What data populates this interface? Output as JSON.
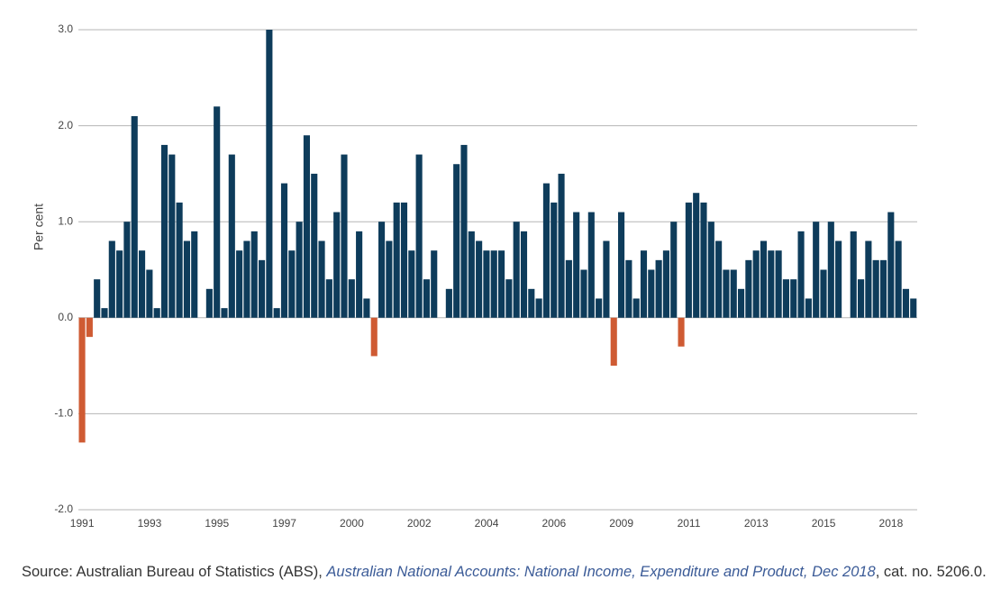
{
  "chart_data": {
    "type": "bar",
    "y_label": "Per cent",
    "categories": [
      "1991",
      null,
      null,
      null,
      null,
      null,
      null,
      null,
      null,
      "1993",
      null,
      null,
      null,
      null,
      null,
      null,
      null,
      null,
      "1995",
      null,
      null,
      null,
      null,
      null,
      null,
      null,
      null,
      "1997",
      null,
      null,
      null,
      null,
      null,
      null,
      null,
      null,
      "2000",
      null,
      null,
      null,
      null,
      null,
      null,
      null,
      null,
      "2002",
      null,
      null,
      null,
      null,
      null,
      null,
      null,
      null,
      "2004",
      null,
      null,
      null,
      null,
      null,
      null,
      null,
      null,
      "2006",
      null,
      null,
      null,
      null,
      null,
      null,
      null,
      null,
      "2009",
      null,
      null,
      null,
      null,
      null,
      null,
      null,
      null,
      "2011",
      null,
      null,
      null,
      null,
      null,
      null,
      null,
      null,
      "2013",
      null,
      null,
      null,
      null,
      null,
      null,
      null,
      null,
      "2015",
      null,
      null,
      null,
      null,
      null,
      null,
      null,
      null,
      "2018",
      null,
      null,
      null
    ],
    "values": [
      -1.3,
      -0.2,
      0.4,
      0.1,
      0.8,
      0.7,
      1.0,
      2.1,
      0.7,
      0.5,
      0.1,
      1.8,
      1.7,
      1.2,
      0.8,
      0.9,
      0,
      0.3,
      2.2,
      0.1,
      1.7,
      0.7,
      0.8,
      0.9,
      0.6,
      3.0,
      0.1,
      1.4,
      0.7,
      1.0,
      1.9,
      1.5,
      0.8,
      0.4,
      1.1,
      1.7,
      0.4,
      0.9,
      0.2,
      -0.4,
      1.0,
      0.8,
      1.2,
      1.2,
      0.7,
      1.7,
      0.4,
      0.7,
      0,
      0.3,
      1.6,
      1.8,
      0.9,
      0.8,
      0.7,
      0.7,
      0.7,
      0.4,
      1.0,
      0.9,
      0.3,
      0.2,
      1.4,
      1.2,
      1.5,
      0.6,
      1.1,
      0.5,
      1.1,
      0.2,
      0.8,
      -0.5,
      1.1,
      0.6,
      0.2,
      0.7,
      0.5,
      0.6,
      0.7,
      1.0,
      -0.3,
      1.2,
      1.3,
      1.2,
      1.0,
      0.8,
      0.5,
      0.5,
      0.3,
      0.6,
      0.7,
      0.8,
      0.7,
      0.7,
      0.4,
      0.4,
      0.9,
      0.2,
      1.0,
      0.5,
      1.0,
      0.8,
      0,
      0.9,
      0.4,
      0.8,
      0.6,
      0.6,
      1.1,
      0.8,
      0.3,
      0.2
    ],
    "color": "#0e3c5b",
    "negative_color": "#cf5b33",
    "ylim": [
      -2,
      3
    ],
    "yticks": [
      {
        "value": -2,
        "label": "-2.0"
      },
      {
        "value": -1,
        "label": "-1.0"
      },
      {
        "value": 0,
        "label": "0.0"
      },
      {
        "value": 1,
        "label": "1.0"
      },
      {
        "value": 2,
        "label": "2.0"
      },
      {
        "value": 3,
        "label": "3.0"
      }
    ],
    "grid": true
  },
  "source": {
    "prefix": "Source: Australian Bureau of Statistics (ABS), ",
    "link": "Australian National Accounts: National Income, Expenditure and Product, Dec 2018",
    "suffix": ", cat. no. 5206.0."
  }
}
